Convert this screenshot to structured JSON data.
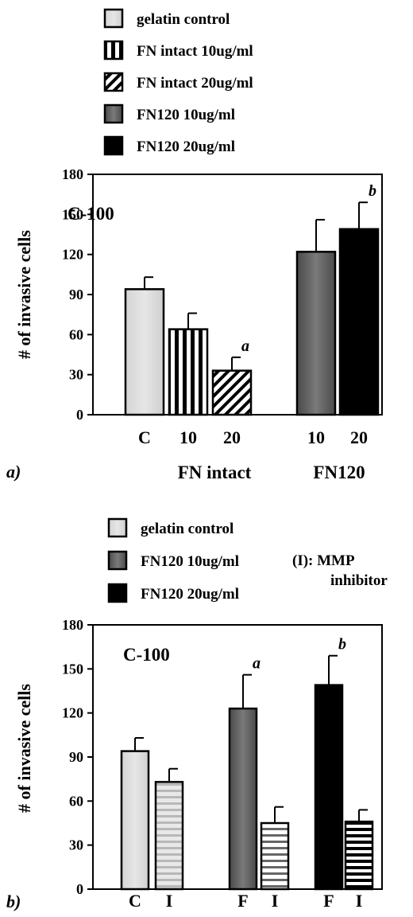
{
  "chart_data": [
    {
      "type": "bar",
      "panel_label": "a)",
      "title": "C-100",
      "ylabel": "# of invasive cells",
      "xlabel": "",
      "ylim": [
        0,
        180
      ],
      "yticks": [
        "0",
        "30",
        "60",
        "90",
        "120",
        "150",
        "180"
      ],
      "legend": [
        {
          "label": "gelatin control",
          "pattern": "light"
        },
        {
          "label": "FN intact 10ug/ml",
          "pattern": "vstripe"
        },
        {
          "label": "FN intact 20ug/ml",
          "pattern": "diag"
        },
        {
          "label": "FN120 10ug/ml",
          "pattern": "gray"
        },
        {
          "label": "FN120 20ug/ml",
          "pattern": "black"
        }
      ],
      "categories": [
        "C",
        "10",
        "20",
        "10",
        "20"
      ],
      "values": [
        94,
        64,
        33,
        122,
        139
      ],
      "errors": [
        9,
        12,
        10,
        24,
        20
      ],
      "patterns": [
        "light",
        "vstripe",
        "diag",
        "gray",
        "black"
      ],
      "significance": [
        "",
        "",
        "a",
        "",
        "b"
      ],
      "group_labels": [
        "FN intact",
        "FN120"
      ]
    },
    {
      "type": "bar",
      "panel_label": "b)",
      "title": "C-100",
      "ylabel": "# of invasive cells",
      "xlabel": "",
      "ylim": [
        0,
        180
      ],
      "yticks": [
        "0",
        "30",
        "60",
        "90",
        "120",
        "150",
        "180"
      ],
      "legend": [
        {
          "label": "gelatin control",
          "pattern": "light"
        },
        {
          "label": "FN120 10ug/ml",
          "pattern": "gray"
        },
        {
          "label": "FN120 20ug/ml",
          "pattern": "black"
        }
      ],
      "note": "(I):  MMP inhibitor",
      "note_lines": [
        "(I):  MMP",
        "inhibitor"
      ],
      "categories": [
        "C",
        "I",
        "F",
        "I",
        "F",
        "I"
      ],
      "values": [
        94,
        73,
        123,
        45,
        139,
        46
      ],
      "errors": [
        9,
        9,
        23,
        11,
        20,
        8
      ],
      "patterns": [
        "light",
        "hlight",
        "gray",
        "hgray",
        "black",
        "hblack"
      ],
      "significance": [
        "",
        "",
        "a",
        "",
        "b",
        ""
      ]
    }
  ]
}
